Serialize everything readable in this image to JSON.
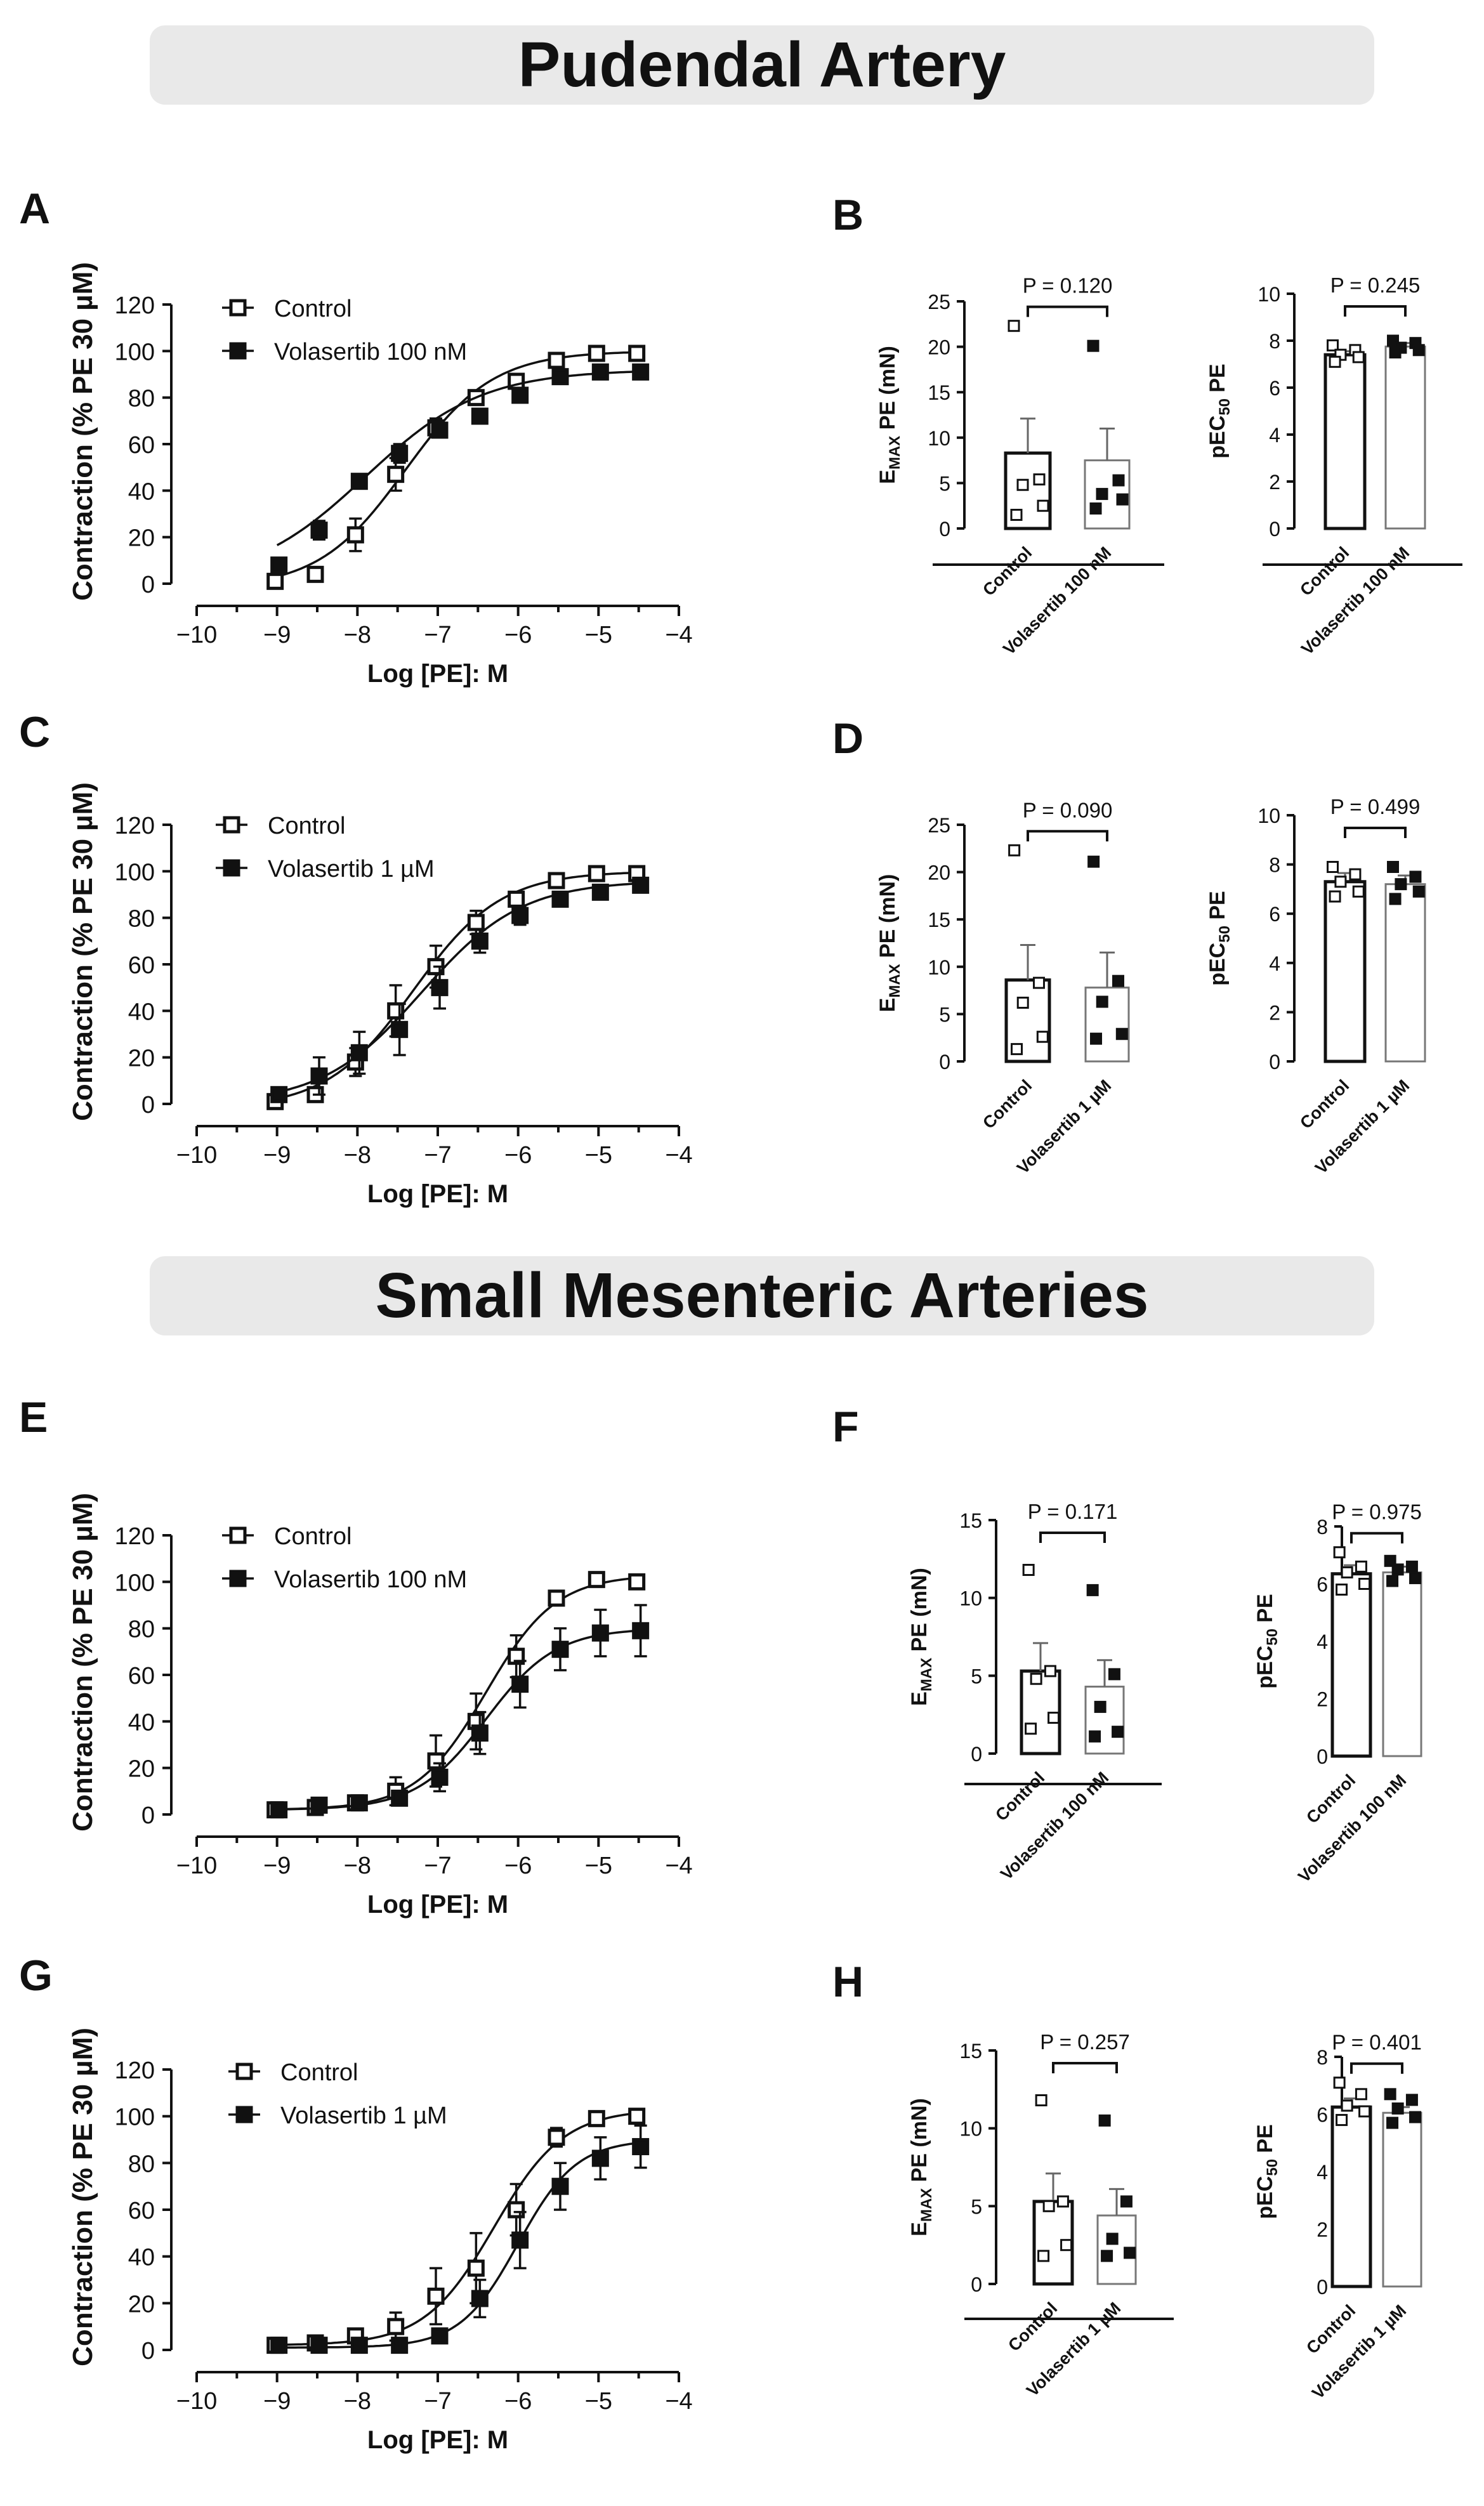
{
  "titles": {
    "pudendal": "Pudendal Artery",
    "mesenteric": "Small Mesenteric Arteries"
  },
  "panels": [
    "A",
    "B",
    "C",
    "D",
    "E",
    "F",
    "G",
    "H"
  ],
  "colors": {
    "ink": "#111111",
    "control_fill": "#ffffff",
    "treated_fill": "#111111"
  },
  "chart_data": [
    {
      "id": "A",
      "type": "line",
      "title": "",
      "xlabel": "Log [PE]: M",
      "ylabel": "Contraction (% PE 30 µM)",
      "xlim": [
        -10,
        -4
      ],
      "ylim": [
        0,
        120
      ],
      "xticks": [
        "−10",
        "−9",
        "−8",
        "−7",
        "−6",
        "−5",
        "−4"
      ],
      "yticks": [
        "0",
        "20",
        "40",
        "60",
        "80",
        "100",
        "120"
      ],
      "x": [
        -9,
        -8.5,
        -8,
        -7.5,
        -7,
        -6.5,
        -6,
        -5.5,
        -5,
        -4.5
      ],
      "series": [
        {
          "name": "Control",
          "marker": "open-square",
          "values": [
            1,
            4,
            21,
            47,
            67,
            80,
            87,
            96,
            99,
            99
          ],
          "errors": [
            1,
            2,
            7,
            7,
            4,
            3,
            3,
            2,
            1,
            1
          ],
          "fit": {
            "bottom": -2,
            "top": 100,
            "logec50": -7.4,
            "hill": 0.8
          }
        },
        {
          "name": "Volasertib 100 nM",
          "marker": "filled-square",
          "values": [
            8,
            23,
            44,
            56,
            66,
            72,
            81,
            89,
            91,
            91
          ],
          "errors": [
            2,
            4,
            3,
            4,
            3,
            3,
            2,
            2,
            2,
            2
          ],
          "fit": {
            "bottom": 0,
            "top": 92,
            "logec50": -7.9,
            "hill": 0.6
          }
        }
      ]
    },
    {
      "id": "C",
      "type": "line",
      "title": "",
      "xlabel": "Log [PE]: M",
      "ylabel": "Contraction (% PE 30 µM)",
      "xlim": [
        -10,
        -4
      ],
      "ylim": [
        0,
        120
      ],
      "xticks": [
        "−10",
        "−9",
        "−8",
        "−7",
        "−6",
        "−5",
        "−4"
      ],
      "yticks": [
        "0",
        "20",
        "40",
        "60",
        "80",
        "100",
        "120"
      ],
      "x": [
        -9,
        -8.5,
        -8,
        -7.5,
        -7,
        -6.5,
        -6,
        -5.5,
        -5,
        -4.5
      ],
      "series": [
        {
          "name": "Control",
          "marker": "open-square",
          "values": [
            1,
            4,
            18,
            40,
            59,
            78,
            88,
            96,
            99,
            99
          ],
          "errors": [
            1,
            3,
            6,
            11,
            9,
            5,
            3,
            2,
            1,
            1
          ],
          "fit": {
            "bottom": -2,
            "top": 100,
            "logec50": -7.3,
            "hill": 0.8
          }
        },
        {
          "name": "Volasertib 1 µM",
          "marker": "filled-square",
          "values": [
            4,
            12,
            22,
            32,
            50,
            70,
            81,
            88,
            91,
            94
          ],
          "errors": [
            2,
            8,
            9,
            11,
            9,
            5,
            4,
            3,
            3,
            2
          ],
          "fit": {
            "bottom": 0,
            "top": 96,
            "logec50": -7.2,
            "hill": 0.7
          }
        }
      ]
    },
    {
      "id": "E",
      "type": "line",
      "title": "",
      "xlabel": "Log [PE]: M",
      "ylabel": "Contraction (% PE 30 µM)",
      "xlim": [
        -10,
        -4
      ],
      "ylim": [
        0,
        120
      ],
      "xticks": [
        "−10",
        "−9",
        "−8",
        "−7",
        "−6",
        "−5",
        "−4"
      ],
      "yticks": [
        "0",
        "20",
        "40",
        "60",
        "80",
        "100",
        "120"
      ],
      "x": [
        -9,
        -8.5,
        -8,
        -7.5,
        -7,
        -6.5,
        -6,
        -5.5,
        -5,
        -4.5
      ],
      "series": [
        {
          "name": "Control",
          "marker": "open-square",
          "values": [
            2,
            3,
            5,
            10,
            23,
            40,
            68,
            93,
            101,
            100
          ],
          "errors": [
            1,
            1,
            2,
            6,
            11,
            12,
            9,
            3,
            2,
            1
          ],
          "fit": {
            "bottom": 2,
            "top": 103,
            "logec50": -6.4,
            "hill": 1.0
          }
        },
        {
          "name": "Volasertib 100 nM",
          "marker": "filled-square",
          "values": [
            2,
            4,
            5,
            7,
            16,
            35,
            56,
            71,
            78,
            79
          ],
          "errors": [
            1,
            1,
            1,
            3,
            6,
            9,
            10,
            9,
            10,
            11
          ],
          "fit": {
            "bottom": 2,
            "top": 80,
            "logec50": -6.4,
            "hill": 1.0
          }
        }
      ]
    },
    {
      "id": "G",
      "type": "line",
      "title": "",
      "xlabel": "Log [PE]: M",
      "ylabel": "Contraction (% PE 30 µM)",
      "xlim": [
        -10,
        -4
      ],
      "ylim": [
        0,
        120
      ],
      "xticks": [
        "−10",
        "−9",
        "−8",
        "−7",
        "−6",
        "−5",
        "−4"
      ],
      "yticks": [
        "0",
        "20",
        "40",
        "60",
        "80",
        "100",
        "120"
      ],
      "x": [
        -9,
        -8.5,
        -8,
        -7.5,
        -7,
        -6.5,
        -6,
        -5.5,
        -5,
        -4.5
      ],
      "series": [
        {
          "name": "Control",
          "marker": "open-square",
          "values": [
            2,
            3,
            6,
            10,
            23,
            35,
            60,
            91,
            99,
            100
          ],
          "errors": [
            1,
            1,
            2,
            6,
            12,
            15,
            11,
            4,
            2,
            1
          ],
          "fit": {
            "bottom": 2,
            "top": 103,
            "logec50": -6.3,
            "hill": 1.0
          }
        },
        {
          "name": "Volasertib 1 µM",
          "marker": "filled-square",
          "values": [
            2,
            2,
            2,
            2,
            6,
            22,
            47,
            70,
            82,
            87
          ],
          "errors": [
            1,
            1,
            1,
            1,
            2,
            8,
            12,
            10,
            9,
            9
          ],
          "fit": {
            "bottom": 1,
            "top": 90,
            "logec50": -6.0,
            "hill": 1.2
          }
        }
      ]
    },
    {
      "id": "B1",
      "type": "bar",
      "ylabel": "E_MAX PE (mN)",
      "ylabel_main": "E",
      "ylabel_sub": "MAX",
      "ylabel_rest": " PE (mN)",
      "ylim": [
        0,
        25
      ],
      "yticks": [
        "0",
        "5",
        "10",
        "15",
        "20",
        "25"
      ],
      "categories": [
        "Control",
        "Volasertib 100 nM"
      ],
      "values": [
        8.3,
        7.5
      ],
      "errors": [
        3.8,
        3.5
      ],
      "points": [
        [
          22.3,
          5.4,
          4.8,
          2.5,
          1.5
        ],
        [
          20.1,
          5.3,
          3.8,
          3.2,
          2.2
        ]
      ],
      "p_label": "P = 0.120"
    },
    {
      "id": "B2",
      "type": "bar",
      "ylabel": "pEC50 PE",
      "ylabel_main": "pEC",
      "ylabel_sub": "50",
      "ylabel_rest": " PE",
      "ylim": [
        0,
        10
      ],
      "yticks": [
        "0",
        "2",
        "4",
        "6",
        "8",
        "10"
      ],
      "categories": [
        "Control",
        "Volasertib 100 nM"
      ],
      "values": [
        7.4,
        7.75
      ],
      "errors": [
        0.15,
        0.15
      ],
      "points": [
        [
          7.8,
          7.6,
          7.4,
          7.3,
          7.1
        ],
        [
          8.0,
          7.9,
          7.7,
          7.6,
          7.5
        ]
      ],
      "p_label": "P = 0.245"
    },
    {
      "id": "D1",
      "type": "bar",
      "ylabel": "E_MAX PE (mN)",
      "ylabel_main": "E",
      "ylabel_sub": "MAX",
      "ylabel_rest": " PE (mN)",
      "ylim": [
        0,
        25
      ],
      "yticks": [
        "0",
        "5",
        "10",
        "15",
        "20",
        "25"
      ],
      "categories": [
        "Control",
        "Volasertib 1 µM"
      ],
      "values": [
        8.6,
        7.8
      ],
      "errors": [
        3.7,
        3.7
      ],
      "points": [
        [
          22.3,
          8.3,
          6.2,
          2.6,
          1.3
        ],
        [
          21.1,
          8.5,
          6.3,
          2.9,
          2.4
        ]
      ],
      "p_label": "P = 0.090"
    },
    {
      "id": "D2",
      "type": "bar",
      "ylabel": "pEC50 PE",
      "ylabel_main": "pEC",
      "ylabel_sub": "50",
      "ylabel_rest": " PE",
      "ylim": [
        0,
        10
      ],
      "yticks": [
        "0",
        "2",
        "4",
        "6",
        "8",
        "10"
      ],
      "categories": [
        "Control",
        "Volasertib 1 µM"
      ],
      "values": [
        7.3,
        7.2
      ],
      "errors": [
        0.35,
        0.35
      ],
      "points": [
        [
          7.9,
          7.6,
          7.3,
          6.9,
          6.7
        ],
        [
          7.9,
          7.5,
          7.2,
          6.9,
          6.6
        ]
      ],
      "p_label": "P = 0.499"
    },
    {
      "id": "F1",
      "type": "bar",
      "ylabel": "E_MAX PE (mN)",
      "ylabel_main": "E",
      "ylabel_sub": "MAX",
      "ylabel_rest": " PE (mN)",
      "ylim": [
        0,
        15
      ],
      "yticks": [
        "0",
        "5",
        "10",
        "15"
      ],
      "categories": [
        "Control",
        "Volasertib 100 nM"
      ],
      "values": [
        5.3,
        4.3
      ],
      "errors": [
        1.8,
        1.7
      ],
      "points": [
        [
          11.8,
          5.3,
          4.8,
          2.3,
          1.6
        ],
        [
          10.5,
          5.1,
          3.0,
          1.4,
          1.1
        ]
      ],
      "p_label": "P = 0.171"
    },
    {
      "id": "F2",
      "type": "bar",
      "ylabel": "pEC50 PE",
      "ylabel_main": "pEC",
      "ylabel_sub": "50",
      "ylabel_rest": " PE",
      "ylim": [
        0,
        8
      ],
      "yticks": [
        "0",
        "2",
        "4",
        "6",
        "8"
      ],
      "categories": [
        "Control",
        "Volasertib 100 nM"
      ],
      "values": [
        6.35,
        6.4
      ],
      "errors": [
        0.3,
        0.2
      ],
      "points": [
        [
          7.1,
          6.6,
          6.4,
          6.0,
          5.8
        ],
        [
          6.8,
          6.6,
          6.5,
          6.2,
          6.1
        ]
      ],
      "p_label": "P = 0.975"
    },
    {
      "id": "H1",
      "type": "bar",
      "ylabel": "E_MAX PE (mN)",
      "ylabel_main": "E",
      "ylabel_sub": "MAX",
      "ylabel_rest": " PE (mN)",
      "ylim": [
        0,
        15
      ],
      "yticks": [
        "0",
        "5",
        "10",
        "15"
      ],
      "categories": [
        "Control",
        "Volasertib 1 µM"
      ],
      "values": [
        5.3,
        4.4
      ],
      "errors": [
        1.8,
        1.7
      ],
      "points": [
        [
          11.8,
          5.3,
          5.0,
          2.5,
          1.8
        ],
        [
          10.5,
          5.3,
          2.9,
          2.0,
          1.8
        ]
      ],
      "p_label": "P = 0.257"
    },
    {
      "id": "H2",
      "type": "bar",
      "ylabel": "pEC50 PE",
      "ylabel_main": "pEC",
      "ylabel_sub": "50",
      "ylabel_rest": " PE",
      "ylim": [
        0,
        8
      ],
      "yticks": [
        "0",
        "2",
        "4",
        "6",
        "8"
      ],
      "categories": [
        "Control",
        "Volasertib 1 µM"
      ],
      "values": [
        6.25,
        6.05
      ],
      "errors": [
        0.3,
        0.2
      ],
      "points": [
        [
          7.1,
          6.7,
          6.3,
          6.1,
          5.8
        ],
        [
          6.7,
          6.5,
          6.2,
          5.9,
          5.7
        ]
      ],
      "p_label": "P = 0.401"
    }
  ]
}
